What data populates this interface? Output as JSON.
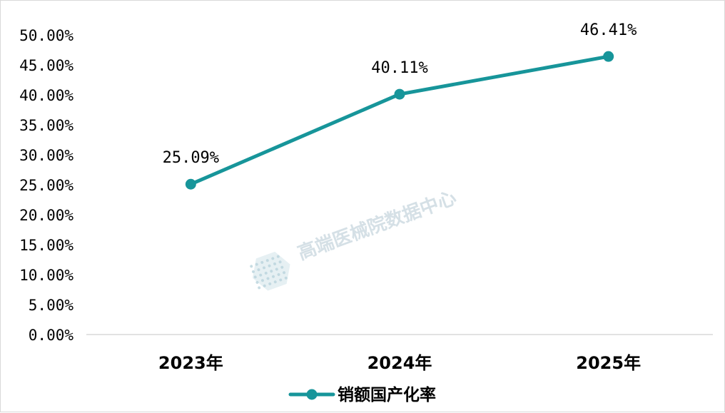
{
  "chart_data": {
    "type": "line",
    "categories": [
      "2023年",
      "2024年",
      "2025年"
    ],
    "series": [
      {
        "name": "销额国产化率",
        "values": [
          25.09,
          40.11,
          46.41
        ],
        "data_labels": [
          "25.09%",
          "40.11%",
          "46.41%"
        ],
        "color": "#17959a"
      }
    ],
    "ylim": [
      0,
      50
    ],
    "ytick_values": [
      0,
      5,
      10,
      15,
      20,
      25,
      30,
      35,
      40,
      45,
      50
    ],
    "ytick_labels": [
      "0.00%",
      "5.00%",
      "10.00%",
      "15.00%",
      "20.00%",
      "25.00%",
      "30.00%",
      "35.00%",
      "40.00%",
      "45.00%",
      "50.00%"
    ],
    "grid": false,
    "legend_position": "bottom",
    "axis_color": "#d9d9d9"
  },
  "watermark": {
    "text": "高端医械院数据中心",
    "icon": "hexagon-logo-icon",
    "color": "#c7d6de"
  }
}
